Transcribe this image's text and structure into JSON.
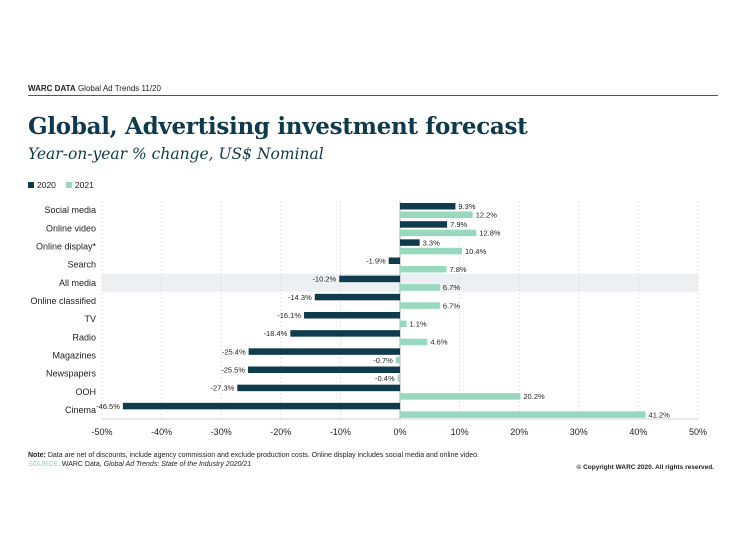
{
  "header": {
    "brand": "WARC DATA",
    "text": "Global Ad Trends 11/20"
  },
  "title": "Global, Advertising investment forecast",
  "subtitle": "Year-on-year % change, US$ Nominal",
  "legend": {
    "series_2020": "2020",
    "series_2021": "2021"
  },
  "colors": {
    "series_2020": "#0e3b4e",
    "series_2021": "#98d8bf",
    "highlight_row": "#edf0f2",
    "grid": "#d9dde0"
  },
  "chart_data": {
    "type": "bar",
    "orientation": "horizontal",
    "categories": [
      "Social media",
      "Online video",
      "Online display*",
      "Search",
      "All media",
      "Online classified",
      "TV",
      "Radio",
      "Magazines",
      "Newspapers",
      "OOH",
      "Cinema"
    ],
    "highlighted_category": "All media",
    "series": [
      {
        "name": "2020",
        "values": [
          9.3,
          7.9,
          3.3,
          -1.9,
          -10.2,
          -14.3,
          -16.1,
          -18.4,
          -25.4,
          -25.5,
          -27.3,
          -46.5
        ],
        "labels": [
          "9.3%",
          "7.9%",
          "3.3%",
          "-1.9%",
          "-10.2%",
          "-14.3%",
          "-16.1%",
          "-18.4%",
          "-25.4%",
          "-25.5%",
          "-27.3%",
          "-46.5%"
        ]
      },
      {
        "name": "2021",
        "values": [
          12.2,
          12.8,
          10.4,
          7.8,
          6.7,
          6.7,
          1.1,
          4.6,
          -0.7,
          -0.4,
          20.2,
          41.2
        ],
        "labels": [
          "12.2%",
          "12.8%",
          "10.4%",
          "7.8%",
          "6.7%",
          "6.7%",
          "1.1%",
          "4.6%",
          "-0.7%",
          "-0.4%",
          "20.2%",
          "41.2%"
        ]
      }
    ],
    "xlim": [
      -50,
      50
    ],
    "xticks": [
      -50,
      -40,
      -30,
      -20,
      -10,
      0,
      10,
      20,
      30,
      40,
      50
    ],
    "xtick_labels": [
      "-50%",
      "-40%",
      "-30%",
      "-20%",
      "-10%",
      "0%",
      "10%",
      "20%",
      "30%",
      "40%",
      "50%"
    ],
    "grid": true,
    "legend_position": "top-left"
  },
  "footer": {
    "note_label": "Note:",
    "note_text": "Data are net of discounts, include agency commission and exclude production costs. Online display includes social media and online video.",
    "source_label": "SOURCE:",
    "source_text": "WARC Data,",
    "source_italic": "Global Ad Trends: State of the Industry 2020/21",
    "copyright": "© Copyright WARC 2020. All rights reserved."
  }
}
